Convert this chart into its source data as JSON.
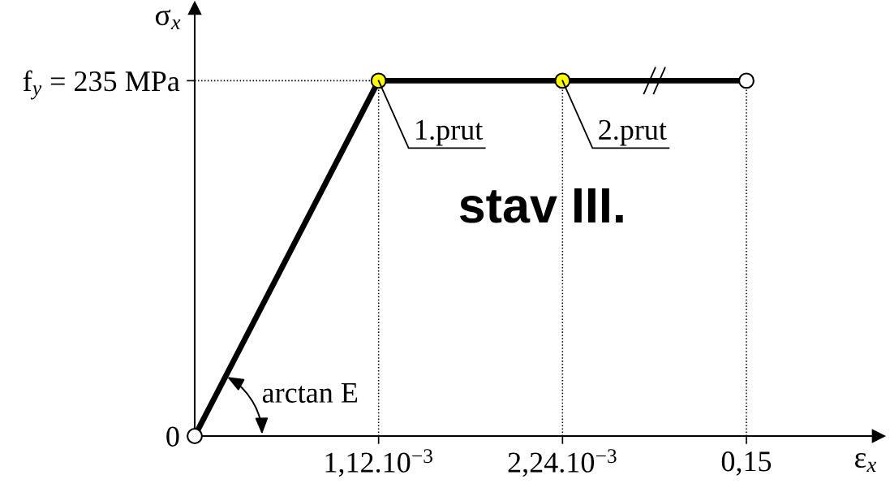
{
  "chart_data": {
    "type": "line",
    "categories": [
      null,
      "1,12.10$^{−3}$",
      "2,24.10$^{−3}$",
      "0,15"
    ],
    "series": [
      {
        "color": "#000000",
        "colors": [
          "#ffffff",
          "#ffff00",
          "#ffff00",
          "#ffffff"
        ],
        "values": [
          0,
          235,
          235,
          235
        ]
      }
    ],
    "xlabel": "ε$_{x}$",
    "ylabel": "σ$_{x}$",
    "ylim": [
      0,
      283
    ],
    "yticks": [
      {
        "value": 0,
        "label": "0"
      },
      {
        "value": 235,
        "label": "f$_{y}$ = 235 MPa"
      }
    ],
    "marker": "circle",
    "line_style": "solid",
    "ref_lines": [
      {
        "axis": "y",
        "value": 235,
        "color": "#000000",
        "line_style": "dotted"
      },
      {
        "axis": "x",
        "value": "1,12.10$^{−3}$",
        "color": "#000000",
        "line_style": "dotted"
      },
      {
        "axis": "x",
        "value": "2,24.10$^{−3}$",
        "color": "#000000",
        "line_style": "dotted"
      },
      {
        "axis": "x",
        "value": "0,15",
        "color": "#000000",
        "line_style": "dotted"
      }
    ],
    "annotations": [
      "arctan E",
      "stav III.",
      {
        "text": "1.prut",
        "x": "1,12.10$^{−3}$",
        "y": 235
      },
      {
        "text": "2.prut",
        "x": "2,24.10$^{−3}$",
        "y": 235
      }
    ]
  }
}
